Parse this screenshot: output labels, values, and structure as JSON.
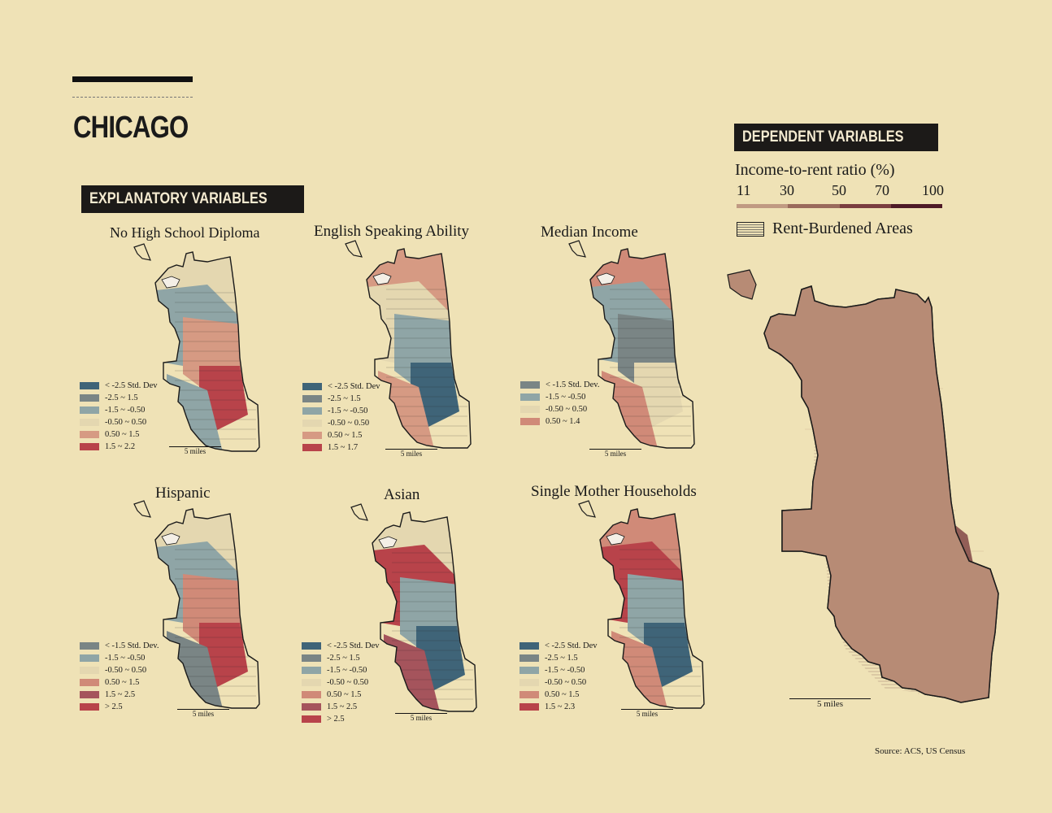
{
  "header": {
    "title": "CHICAGO"
  },
  "explanatory": {
    "tag": "EXPLANATORY VARIABLES",
    "scale_label": "5 miles",
    "panels": [
      {
        "id": "no-high-school",
        "title": "No High School Diploma",
        "legend": [
          {
            "label": "< -2.5 Std. Dev",
            "color": "#3f6478"
          },
          {
            "label": "-2.5 ~ 1.5",
            "color": "#7a8585"
          },
          {
            "label": "-1.5 ~ -0.50",
            "color": "#8fa5a6"
          },
          {
            "label": "-0.50 ~ 0.50",
            "color": "#e4d7b0"
          },
          {
            "label": "0.50 ~ 1.5",
            "color": "#d69a83"
          },
          {
            "label": "1.5 ~ 2.2",
            "color": "#b8434a"
          }
        ]
      },
      {
        "id": "english-speaking",
        "title": "English Speaking Ability",
        "legend": [
          {
            "label": "< -2.5 Std. Dev",
            "color": "#3f6478"
          },
          {
            "label": "-2.5 ~ 1.5",
            "color": "#7a8585"
          },
          {
            "label": "-1.5 ~ -0.50",
            "color": "#8fa5a6"
          },
          {
            "label": "-0.50 ~ 0.50",
            "color": "#e4d7b0"
          },
          {
            "label": "0.50 ~ 1.5",
            "color": "#d69a83"
          },
          {
            "label": "1.5 ~ 1.7",
            "color": "#b8434a"
          }
        ]
      },
      {
        "id": "median-income",
        "title": "Median Income",
        "legend": [
          {
            "label": "< -1.5 Std. Dev.",
            "color": "#7a8585"
          },
          {
            "label": "-1.5 ~ -0.50",
            "color": "#8fa5a6"
          },
          {
            "label": "-0.50 ~ 0.50",
            "color": "#e4d7b0"
          },
          {
            "label": "0.50 ~ 1.4",
            "color": "#d08a78"
          }
        ]
      },
      {
        "id": "hispanic",
        "title": "Hispanic",
        "legend": [
          {
            "label": "< -1.5 Std. Dev.",
            "color": "#7a8585"
          },
          {
            "label": "-1.5 ~ -0.50",
            "color": "#8fa5a6"
          },
          {
            "label": "-0.50 ~ 0.50",
            "color": "#e4d7b0"
          },
          {
            "label": "0.50 ~ 1.5",
            "color": "#d08a78"
          },
          {
            "label": "1.5 ~ 2.5",
            "color": "#a5545c"
          },
          {
            "label": "> 2.5",
            "color": "#b8434a"
          }
        ]
      },
      {
        "id": "asian",
        "title": "Asian",
        "legend": [
          {
            "label": "< -2.5 Std. Dev",
            "color": "#3f6478"
          },
          {
            "label": "-2.5 ~ 1.5",
            "color": "#7a8585"
          },
          {
            "label": "-1.5 ~ -0.50",
            "color": "#8fa5a6"
          },
          {
            "label": "-0.50 ~ 0.50",
            "color": "#e4d7b0"
          },
          {
            "label": "0.50 ~ 1.5",
            "color": "#d08a78"
          },
          {
            "label": "1.5 ~ 2.5",
            "color": "#a5545c"
          },
          {
            "label": "> 2.5",
            "color": "#b8434a"
          }
        ]
      },
      {
        "id": "single-mother",
        "title": "Single Mother Households",
        "legend": [
          {
            "label": "< -2.5 Std. Dev",
            "color": "#3f6478"
          },
          {
            "label": "-2.5 ~ 1.5",
            "color": "#7a8585"
          },
          {
            "label": "-1.5 ~ -0.50",
            "color": "#8fa5a6"
          },
          {
            "label": "-0.50 ~ 0.50",
            "color": "#e4d7b0"
          },
          {
            "label": "0.50 ~ 1.5",
            "color": "#d08a78"
          },
          {
            "label": "1.5 ~ 2.3",
            "color": "#b8434a"
          }
        ]
      }
    ]
  },
  "dependent": {
    "tag": "DEPENDENT VARIABLES",
    "ratio_title": "Income-to-rent ratio (%)",
    "ticks": [
      "11",
      "30",
      "50",
      "70",
      "100"
    ],
    "ramp_colors": [
      "#c09a82",
      "#9a6a5c",
      "#7a3d40",
      "#4e1a26"
    ],
    "rent_burdened_label": "Rent-Burdened Areas",
    "scale_label": "5 miles"
  },
  "footer": {
    "source": "Source: ACS, US Census"
  }
}
